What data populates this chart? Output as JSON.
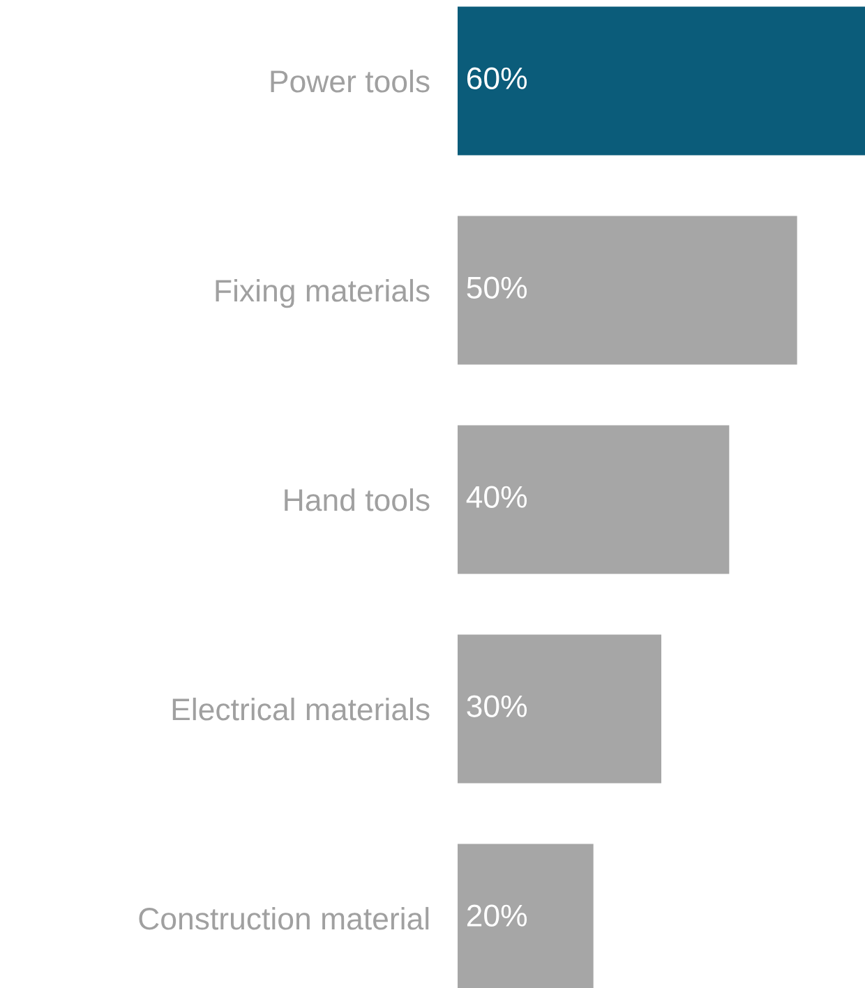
{
  "chart_data": {
    "type": "bar",
    "orientation": "horizontal",
    "categories": [
      "Power tools",
      "Fixing materials",
      "Hand tools",
      "Electrical materials",
      "Construction material"
    ],
    "values": [
      60,
      50,
      40,
      30,
      20
    ],
    "colors": [
      "#0b5c7a",
      "#a6a6a6",
      "#a6a6a6",
      "#a6a6a6",
      "#a6a6a6"
    ],
    "value_labels": [
      "60%",
      "50%",
      "40%",
      "30%",
      "20%"
    ],
    "tick_labels": "y",
    "grid": false,
    "legend": false
  }
}
